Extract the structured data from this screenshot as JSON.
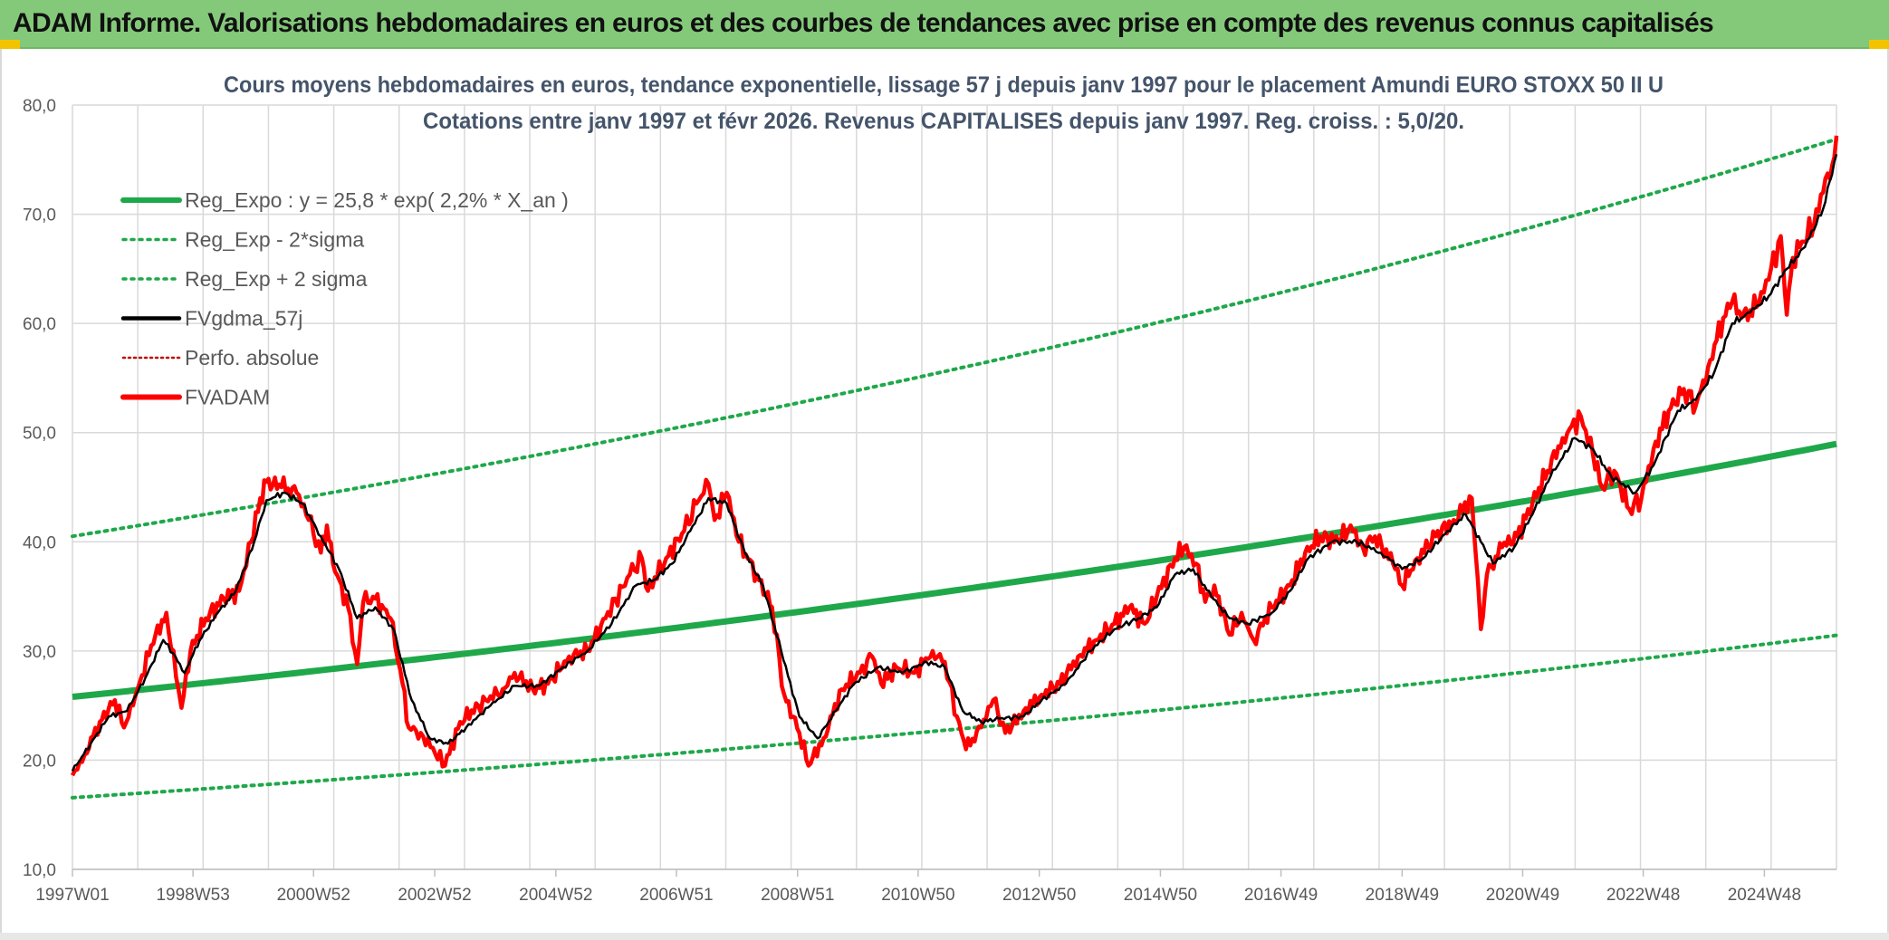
{
  "banner": {
    "title": "ADAM Informe. Valorisations hebdomadaires en euros et des courbes de tendances avec prise en compte des revenus connus capitalisés"
  },
  "colors": {
    "banner_bg": "#84c97a",
    "trend": "#1fa84a",
    "bands": "#1fa84a",
    "smooth": "#000000",
    "price": "#ff0000",
    "perfo": "#c00000",
    "grid": "#d9d9d9",
    "corner": "#f2c400"
  },
  "chart_data": {
    "type": "line",
    "title_line1": "Cours moyens hebdomadaires en euros, tendance exponentielle, lissage 57 j depuis janv 1997 pour le placement Amundi EURO STOXX 50 II U",
    "title_line2": "Cotations entre janv 1997 et févr 2026. Revenus CAPITALISES depuis janv 1997. Reg. croiss. : 5,0/20.",
    "ylim": [
      10,
      80
    ],
    "yticks": [
      "10,0",
      "20,0",
      "30,0",
      "40,0",
      "50,0",
      "60,0",
      "70,0",
      "80,0"
    ],
    "xlim": [
      1997.0,
      2026.12
    ],
    "xticks": [
      {
        "label": "1997W01",
        "year": 1997.0
      },
      {
        "label": "1998W53",
        "year": 1998.99
      },
      {
        "label": "2000W52",
        "year": 2000.98
      },
      {
        "label": "2002W52",
        "year": 2002.98
      },
      {
        "label": "2004W52",
        "year": 2004.98
      },
      {
        "label": "2006W51",
        "year": 2006.97
      },
      {
        "label": "2008W51",
        "year": 2008.97
      },
      {
        "label": "2010W50",
        "year": 2010.96
      },
      {
        "label": "2012W50",
        "year": 2012.96
      },
      {
        "label": "2014W50",
        "year": 2014.96
      },
      {
        "label": "2016W49",
        "year": 2016.95
      },
      {
        "label": "2018W49",
        "year": 2018.95
      },
      {
        "label": "2020W49",
        "year": 2020.94
      },
      {
        "label": "2022W48",
        "year": 2022.93
      },
      {
        "label": "2024W48",
        "year": 2024.93
      }
    ],
    "legend": [
      {
        "label": "Reg_Expo : y = 25,8 * exp( 2,2% *  X_an )",
        "style": "trend"
      },
      {
        "label": "Reg_Exp - 2*sigma",
        "style": "band"
      },
      {
        "label": "Reg_Exp + 2 sigma",
        "style": "band"
      },
      {
        "label": "FVgdma_57j",
        "style": "smooth"
      },
      {
        "label": "Perfo. absolue",
        "style": "perfo"
      },
      {
        "label": "FVADAM",
        "style": "price"
      }
    ],
    "regression": {
      "a": 25.8,
      "rate": 0.022,
      "start_year": 1997.0,
      "lower_factor": 0.642,
      "upper_factor": 1.57
    },
    "series": [
      {
        "name": "FVADAM",
        "points": [
          [
            1997.0,
            18.6
          ],
          [
            1997.2,
            20.5
          ],
          [
            1997.45,
            23.5
          ],
          [
            1997.7,
            25.5
          ],
          [
            1997.85,
            23.0
          ],
          [
            1998.0,
            25.0
          ],
          [
            1998.3,
            30.5
          ],
          [
            1998.55,
            33.5
          ],
          [
            1998.75,
            26.5
          ],
          [
            1998.8,
            24.8
          ],
          [
            1998.95,
            30.0
          ],
          [
            1999.2,
            33.0
          ],
          [
            1999.5,
            34.8
          ],
          [
            1999.75,
            35.5
          ],
          [
            1999.95,
            40.0
          ],
          [
            2000.1,
            44.0
          ],
          [
            2000.2,
            45.5
          ],
          [
            2000.45,
            45.0
          ],
          [
            2000.7,
            44.5
          ],
          [
            2000.9,
            42.0
          ],
          [
            2001.1,
            39.0
          ],
          [
            2001.2,
            41.5
          ],
          [
            2001.3,
            38.0
          ],
          [
            2001.55,
            34.0
          ],
          [
            2001.7,
            28.8
          ],
          [
            2001.8,
            34.5
          ],
          [
            2002.0,
            34.8
          ],
          [
            2002.25,
            33.0
          ],
          [
            2002.45,
            27.0
          ],
          [
            2002.55,
            23.0
          ],
          [
            2002.75,
            22.5
          ],
          [
            2003.15,
            19.5
          ],
          [
            2003.4,
            23.5
          ],
          [
            2003.7,
            25.0
          ],
          [
            2004.1,
            26.5
          ],
          [
            2004.3,
            28.0
          ],
          [
            2004.6,
            26.5
          ],
          [
            2004.85,
            27.0
          ],
          [
            2005.2,
            29.5
          ],
          [
            2005.5,
            30.0
          ],
          [
            2005.8,
            33.0
          ],
          [
            2006.2,
            37.0
          ],
          [
            2006.4,
            38.5
          ],
          [
            2006.5,
            35.5
          ],
          [
            2006.8,
            38.5
          ],
          [
            2007.1,
            41.0
          ],
          [
            2007.3,
            43.5
          ],
          [
            2007.5,
            45.3
          ],
          [
            2007.6,
            42.0
          ],
          [
            2007.8,
            44.5
          ],
          [
            2008.0,
            40.0
          ],
          [
            2008.3,
            37.0
          ],
          [
            2008.55,
            34.0
          ],
          [
            2008.75,
            26.0
          ],
          [
            2009.0,
            22.5
          ],
          [
            2009.15,
            19.5
          ],
          [
            2009.4,
            22.0
          ],
          [
            2009.7,
            26.5
          ],
          [
            2010.0,
            28.0
          ],
          [
            2010.2,
            29.5
          ],
          [
            2010.35,
            27.0
          ],
          [
            2010.6,
            28.5
          ],
          [
            2010.9,
            28.0
          ],
          [
            2011.2,
            30.0
          ],
          [
            2011.4,
            29.0
          ],
          [
            2011.6,
            24.0
          ],
          [
            2011.75,
            21.0
          ],
          [
            2012.0,
            23.0
          ],
          [
            2012.2,
            25.5
          ],
          [
            2012.4,
            22.5
          ],
          [
            2012.7,
            24.5
          ],
          [
            2013.0,
            26.0
          ],
          [
            2013.3,
            27.0
          ],
          [
            2013.6,
            29.5
          ],
          [
            2013.9,
            31.0
          ],
          [
            2014.2,
            32.5
          ],
          [
            2014.45,
            34.0
          ],
          [
            2014.7,
            32.5
          ],
          [
            2014.9,
            35.0
          ],
          [
            2015.2,
            38.5
          ],
          [
            2015.35,
            39.5
          ],
          [
            2015.55,
            38.0
          ],
          [
            2015.7,
            34.5
          ],
          [
            2015.85,
            36.0
          ],
          [
            2016.1,
            31.5
          ],
          [
            2016.3,
            33.5
          ],
          [
            2016.5,
            31.0
          ],
          [
            2016.8,
            34.0
          ],
          [
            2017.1,
            36.0
          ],
          [
            2017.35,
            39.0
          ],
          [
            2017.6,
            40.5
          ],
          [
            2017.9,
            40.0
          ],
          [
            2018.1,
            41.5
          ],
          [
            2018.3,
            39.5
          ],
          [
            2018.5,
            40.5
          ],
          [
            2018.8,
            38.0
          ],
          [
            2018.95,
            36.0
          ],
          [
            2019.2,
            38.5
          ],
          [
            2019.5,
            40.5
          ],
          [
            2019.8,
            42.0
          ],
          [
            2020.1,
            44.0
          ],
          [
            2020.2,
            36.5
          ],
          [
            2020.25,
            32.0
          ],
          [
            2020.35,
            37.0
          ],
          [
            2020.6,
            39.5
          ],
          [
            2020.85,
            40.5
          ],
          [
            2021.1,
            43.5
          ],
          [
            2021.35,
            46.5
          ],
          [
            2021.6,
            49.5
          ],
          [
            2021.9,
            51.5
          ],
          [
            2022.1,
            48.0
          ],
          [
            2022.25,
            45.0
          ],
          [
            2022.45,
            46.5
          ],
          [
            2022.7,
            43.0
          ],
          [
            2022.9,
            44.0
          ],
          [
            2023.1,
            48.5
          ],
          [
            2023.35,
            52.0
          ],
          [
            2023.6,
            54.0
          ],
          [
            2023.8,
            52.5
          ],
          [
            2024.0,
            56.0
          ],
          [
            2024.25,
            60.5
          ],
          [
            2024.4,
            62.0
          ],
          [
            2024.55,
            60.5
          ],
          [
            2024.8,
            61.5
          ],
          [
            2025.0,
            64.0
          ],
          [
            2025.2,
            68.0
          ],
          [
            2025.3,
            60.8
          ],
          [
            2025.4,
            66.0
          ],
          [
            2025.55,
            67.5
          ],
          [
            2025.75,
            69.0
          ],
          [
            2025.9,
            72.0
          ],
          [
            2026.05,
            74.5
          ],
          [
            2026.12,
            77.2
          ]
        ]
      },
      {
        "name": "FVgdma_57j",
        "points": [
          [
            1997.0,
            19.0
          ],
          [
            1997.3,
            21.5
          ],
          [
            1997.6,
            24.0
          ],
          [
            1997.9,
            24.5
          ],
          [
            1998.2,
            27.5
          ],
          [
            1998.5,
            31.0
          ],
          [
            1998.7,
            29.5
          ],
          [
            1998.85,
            28.0
          ],
          [
            1999.1,
            31.0
          ],
          [
            1999.4,
            33.5
          ],
          [
            1999.7,
            35.5
          ],
          [
            2000.0,
            40.0
          ],
          [
            2000.2,
            43.8
          ],
          [
            2000.5,
            44.5
          ],
          [
            2000.8,
            43.5
          ],
          [
            2001.1,
            40.5
          ],
          [
            2001.4,
            37.5
          ],
          [
            2001.7,
            33.0
          ],
          [
            2002.0,
            34.0
          ],
          [
            2002.3,
            32.0
          ],
          [
            2002.6,
            25.5
          ],
          [
            2002.9,
            22.0
          ],
          [
            2003.2,
            21.5
          ],
          [
            2003.5,
            23.0
          ],
          [
            2003.9,
            25.0
          ],
          [
            2004.3,
            26.8
          ],
          [
            2004.7,
            26.8
          ],
          [
            2005.1,
            28.5
          ],
          [
            2005.5,
            30.0
          ],
          [
            2005.9,
            32.5
          ],
          [
            2006.3,
            36.0
          ],
          [
            2006.6,
            36.5
          ],
          [
            2006.9,
            38.0
          ],
          [
            2007.2,
            41.0
          ],
          [
            2007.5,
            44.0
          ],
          [
            2007.8,
            43.5
          ],
          [
            2008.1,
            39.0
          ],
          [
            2008.4,
            36.0
          ],
          [
            2008.7,
            30.0
          ],
          [
            2009.0,
            24.0
          ],
          [
            2009.3,
            22.0
          ],
          [
            2009.6,
            24.5
          ],
          [
            2009.9,
            27.0
          ],
          [
            2010.3,
            28.5
          ],
          [
            2010.7,
            28.0
          ],
          [
            2011.1,
            29.0
          ],
          [
            2011.4,
            28.5
          ],
          [
            2011.7,
            24.5
          ],
          [
            2012.0,
            23.5
          ],
          [
            2012.3,
            23.8
          ],
          [
            2012.7,
            24.0
          ],
          [
            2013.0,
            25.5
          ],
          [
            2013.4,
            27.0
          ],
          [
            2013.8,
            30.0
          ],
          [
            2014.2,
            32.0
          ],
          [
            2014.6,
            33.0
          ],
          [
            2014.9,
            34.0
          ],
          [
            2015.2,
            37.0
          ],
          [
            2015.5,
            37.5
          ],
          [
            2015.8,
            35.0
          ],
          [
            2016.1,
            33.0
          ],
          [
            2016.4,
            32.5
          ],
          [
            2016.8,
            33.5
          ],
          [
            2017.1,
            35.5
          ],
          [
            2017.4,
            38.5
          ],
          [
            2017.8,
            40.0
          ],
          [
            2018.2,
            40.0
          ],
          [
            2018.6,
            39.0
          ],
          [
            2018.95,
            37.5
          ],
          [
            2019.3,
            38.5
          ],
          [
            2019.7,
            41.0
          ],
          [
            2020.0,
            42.5
          ],
          [
            2020.25,
            40.0
          ],
          [
            2020.45,
            38.0
          ],
          [
            2020.8,
            39.5
          ],
          [
            2021.1,
            42.5
          ],
          [
            2021.4,
            46.0
          ],
          [
            2021.8,
            49.5
          ],
          [
            2022.1,
            48.5
          ],
          [
            2022.4,
            46.0
          ],
          [
            2022.8,
            44.5
          ],
          [
            2023.1,
            47.0
          ],
          [
            2023.5,
            52.0
          ],
          [
            2023.8,
            53.0
          ],
          [
            2024.1,
            55.5
          ],
          [
            2024.4,
            60.0
          ],
          [
            2024.7,
            61.0
          ],
          [
            2025.0,
            62.5
          ],
          [
            2025.3,
            65.0
          ],
          [
            2025.6,
            67.0
          ],
          [
            2025.9,
            70.5
          ],
          [
            2026.12,
            75.5
          ]
        ]
      }
    ]
  }
}
